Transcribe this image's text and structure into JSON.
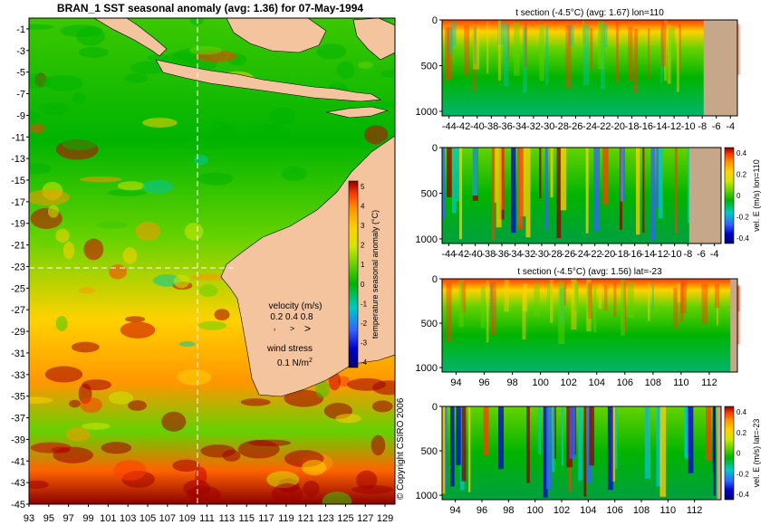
{
  "colors": {
    "background": "#ffffff",
    "land": "#f4c49e",
    "land_section": "#c7a78a",
    "colormap": [
      "#00006e",
      "#0000c8",
      "#3264ff",
      "#64b4ff",
      "#00c8c8",
      "#00b400",
      "#64d200",
      "#d2e600",
      "#ffd200",
      "#ff9600",
      "#ff3c00",
      "#c80000",
      "#8c0000"
    ]
  },
  "map": {
    "title": "BRAN_1 SST seasonal anomaly (avg: 1.36) for 07-May-1994",
    "lat_ticks": [
      "-1",
      "-3",
      "-5",
      "-7",
      "-9",
      "-11",
      "-13",
      "-15",
      "-17",
      "-19",
      "-21",
      "-23",
      "-25",
      "-27",
      "-29",
      "-31",
      "-33",
      "-35",
      "-37",
      "-39",
      "-41",
      "-43",
      "-45"
    ],
    "lon_ticks": [
      "93",
      "95",
      "97",
      "99",
      "101",
      "103",
      "105",
      "107",
      "109",
      "111",
      "113",
      "115",
      "117",
      "119",
      "121",
      "123",
      "125",
      "127",
      "129"
    ],
    "colorbar": {
      "label": "temperature seasonal anomaly (°C)",
      "ticks": [
        "5",
        "4",
        "3",
        "2",
        "1",
        "0",
        "-1",
        "-2",
        "-3",
        "-4"
      ]
    },
    "velocity_label": "velocity (m/s)",
    "velocity_scale": "0.2 0.4 0.8",
    "wind_stress_label": "wind stress",
    "wind_stress_value": "0.1 N/m",
    "wind_stress_exponent": "2",
    "copyright": "© Copyright CSIRO 2006"
  },
  "panels": [
    {
      "title": "t section (-4.5°C) (avg: 1.67) lon=110",
      "x_ticks": [
        "-44",
        "-42",
        "-40",
        "-38",
        "-36",
        "-34",
        "-32",
        "-30",
        "-28",
        "-26",
        "-24",
        "-22",
        "-20",
        "-18",
        "-16",
        "-14",
        "-12",
        "-10",
        "-8",
        "-6",
        "-4"
      ],
      "y_ticks": [
        "0",
        "500",
        "1000"
      ],
      "colorbar": null
    },
    {
      "title": "",
      "x_ticks": [
        "-44",
        "-42",
        "-40",
        "-38",
        "-36",
        "-34",
        "-32",
        "-30",
        "-28",
        "-26",
        "-24",
        "-22",
        "-20",
        "-18",
        "-16",
        "-14",
        "-12",
        "-10",
        "-8",
        "-6",
        "-4"
      ],
      "y_ticks": [
        "0",
        "500",
        "1000"
      ],
      "colorbar": {
        "label": "vel. E (m/s) lon=110",
        "ticks": [
          "0.4",
          "0.2",
          "0",
          "-0.2",
          "-0.4"
        ]
      }
    },
    {
      "title": "t section (-4.5°C) (avg: 1.56) lat=-23",
      "x_ticks": [
        "94",
        "96",
        "98",
        "100",
        "102",
        "104",
        "106",
        "108",
        "110",
        "112"
      ],
      "y_ticks": [
        "0",
        "500",
        "1000"
      ],
      "colorbar": null
    },
    {
      "title": "",
      "x_ticks": [
        "94",
        "96",
        "98",
        "100",
        "102",
        "104",
        "106",
        "108",
        "110",
        "112"
      ],
      "y_ticks": [
        "0",
        "500",
        "1000"
      ],
      "colorbar": {
        "label": "vel. E (m/s) lat=-23",
        "ticks": [
          "0.4",
          "0.2",
          "0",
          "-0.2",
          "-0.4"
        ]
      }
    }
  ],
  "chart_data": [
    {
      "type": "heatmap",
      "title": "BRAN_1 SST seasonal anomaly (avg: 1.36) for 07-May-1994",
      "xlabel": "",
      "ylabel": "",
      "xlim": [
        93,
        130
      ],
      "ylim": [
        -45,
        0
      ],
      "colorbar_range": [
        -4,
        5
      ],
      "colorbar_label": "temperature seasonal anomaly (°C)",
      "average": 1.36
    },
    {
      "type": "heatmap",
      "title": "t section (-4.5°C) (avg: 1.67) lon=110",
      "xlim": [
        -45,
        -3
      ],
      "ylim": [
        1050,
        0
      ],
      "average": 1.67
    },
    {
      "type": "heatmap",
      "title": "",
      "colorbar_label": "vel. E (m/s) lon=110",
      "colorbar_range": [
        -0.4,
        0.4
      ],
      "xlim": [
        -45,
        -3
      ],
      "ylim": [
        1050,
        0
      ]
    },
    {
      "type": "heatmap",
      "title": "t section (-4.5°C) (avg: 1.56) lat=-23",
      "xlim": [
        93,
        114
      ],
      "ylim": [
        1050,
        0
      ],
      "average": 1.56
    },
    {
      "type": "heatmap",
      "title": "",
      "colorbar_label": "vel. E (m/s) lat=-23",
      "colorbar_range": [
        -0.4,
        0.4
      ],
      "xlim": [
        93,
        114
      ],
      "ylim": [
        1050,
        0
      ]
    }
  ]
}
